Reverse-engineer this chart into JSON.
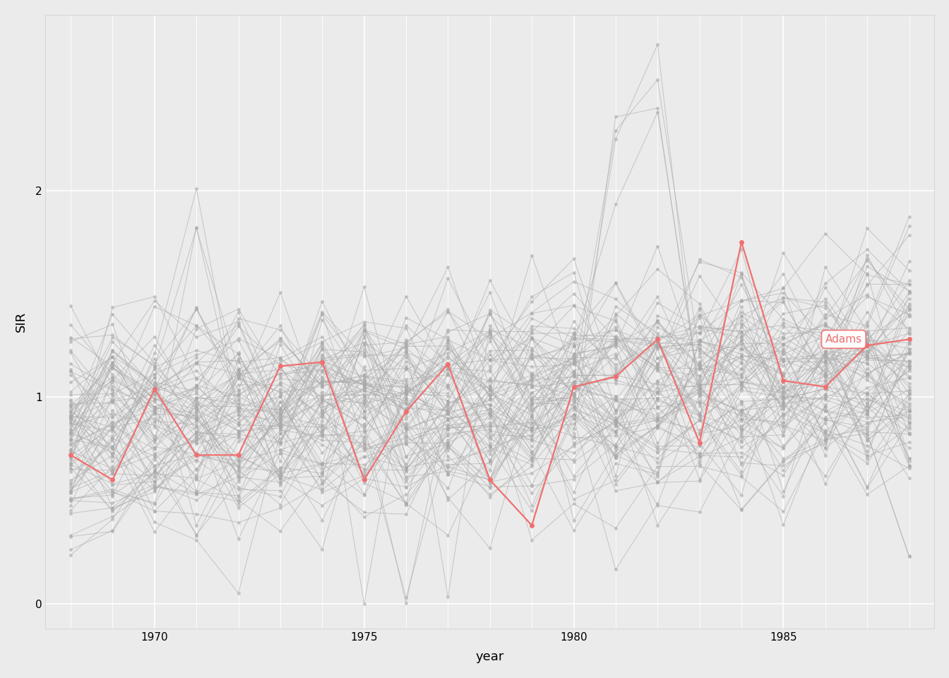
{
  "years": [
    1968,
    1969,
    1970,
    1971,
    1972,
    1973,
    1974,
    1975,
    1976,
    1977,
    1978,
    1979,
    1980,
    1981,
    1982,
    1983,
    1984,
    1985,
    1986,
    1987,
    1988
  ],
  "adams_sir": [
    0.72,
    0.6,
    1.04,
    0.72,
    0.72,
    1.15,
    1.17,
    0.6,
    0.93,
    1.16,
    0.6,
    0.38,
    1.05,
    1.1,
    1.28,
    0.78,
    1.75,
    1.08,
    1.05,
    1.25,
    1.28
  ],
  "n_counties": 88,
  "background_color": "#ebebeb",
  "panel_color": "#ebebeb",
  "grid_color": "#ffffff",
  "gray_color": "#aaaaaa",
  "adams_color": "#f07070",
  "adams_label": "Adams",
  "xlabel": "year",
  "ylabel": "SIR",
  "xlim": [
    1967.4,
    1988.6
  ],
  "ylim": [
    -0.12,
    2.85
  ],
  "yticks": [
    0,
    1,
    2
  ],
  "xticks": [
    1970,
    1975,
    1980,
    1985
  ],
  "gray_alpha": 0.6,
  "gray_linewidth": 0.7,
  "adams_linewidth": 1.6,
  "marker_size": 3.5,
  "adams_marker_size": 5,
  "random_seed": 12345
}
